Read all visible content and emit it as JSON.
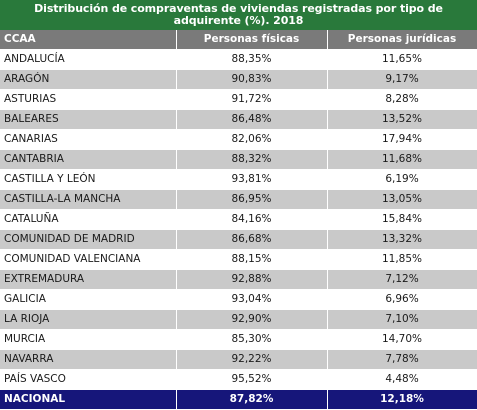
{
  "title": "Distribución de compraventas de viviendas registradas por tipo de adquirente (%). 2018",
  "colors": {
    "title_bg": "#29793b",
    "header_bg": "#7a7a7a",
    "row_alt_bg": "#c9c9c9",
    "total_bg": "#16167a"
  },
  "columns": [
    "CCAA",
    "Personas físicas",
    "Personas jurídicas"
  ],
  "rows": [
    {
      "ccaa": "ANDALUCÍA",
      "fisicas": "88,35%",
      "juridicas": "11,65%"
    },
    {
      "ccaa": "ARAGÓN",
      "fisicas": "90,83%",
      "juridicas": "9,17%"
    },
    {
      "ccaa": "ASTURIAS",
      "fisicas": "91,72%",
      "juridicas": "8,28%"
    },
    {
      "ccaa": "BALEARES",
      "fisicas": "86,48%",
      "juridicas": "13,52%"
    },
    {
      "ccaa": "CANARIAS",
      "fisicas": "82,06%",
      "juridicas": "17,94%"
    },
    {
      "ccaa": "CANTABRIA",
      "fisicas": "88,32%",
      "juridicas": "11,68%"
    },
    {
      "ccaa": "CASTILLA Y LEÓN",
      "fisicas": "93,81%",
      "juridicas": "6,19%"
    },
    {
      "ccaa": "CASTILLA-LA MANCHA",
      "fisicas": "86,95%",
      "juridicas": "13,05%"
    },
    {
      "ccaa": "CATALUÑA",
      "fisicas": "84,16%",
      "juridicas": "15,84%"
    },
    {
      "ccaa": "COMUNIDAD DE MADRID",
      "fisicas": "86,68%",
      "juridicas": "13,32%"
    },
    {
      "ccaa": "COMUNIDAD VALENCIANA",
      "fisicas": "88,15%",
      "juridicas": "11,85%"
    },
    {
      "ccaa": "EXTREMADURA",
      "fisicas": "92,88%",
      "juridicas": "7,12%"
    },
    {
      "ccaa": "GALICIA",
      "fisicas": "93,04%",
      "juridicas": "6,96%"
    },
    {
      "ccaa": "LA RIOJA",
      "fisicas": "92,90%",
      "juridicas": "7,10%"
    },
    {
      "ccaa": "MURCIA",
      "fisicas": "85,30%",
      "juridicas": "14,70%"
    },
    {
      "ccaa": "NAVARRA",
      "fisicas": "92,22%",
      "juridicas": "7,78%"
    },
    {
      "ccaa": "PAÍS VASCO",
      "fisicas": "95,52%",
      "juridicas": "4,48%"
    }
  ],
  "total": {
    "ccaa": "NACIONAL",
    "fisicas": "87,82%",
    "juridicas": "12,18%"
  }
}
